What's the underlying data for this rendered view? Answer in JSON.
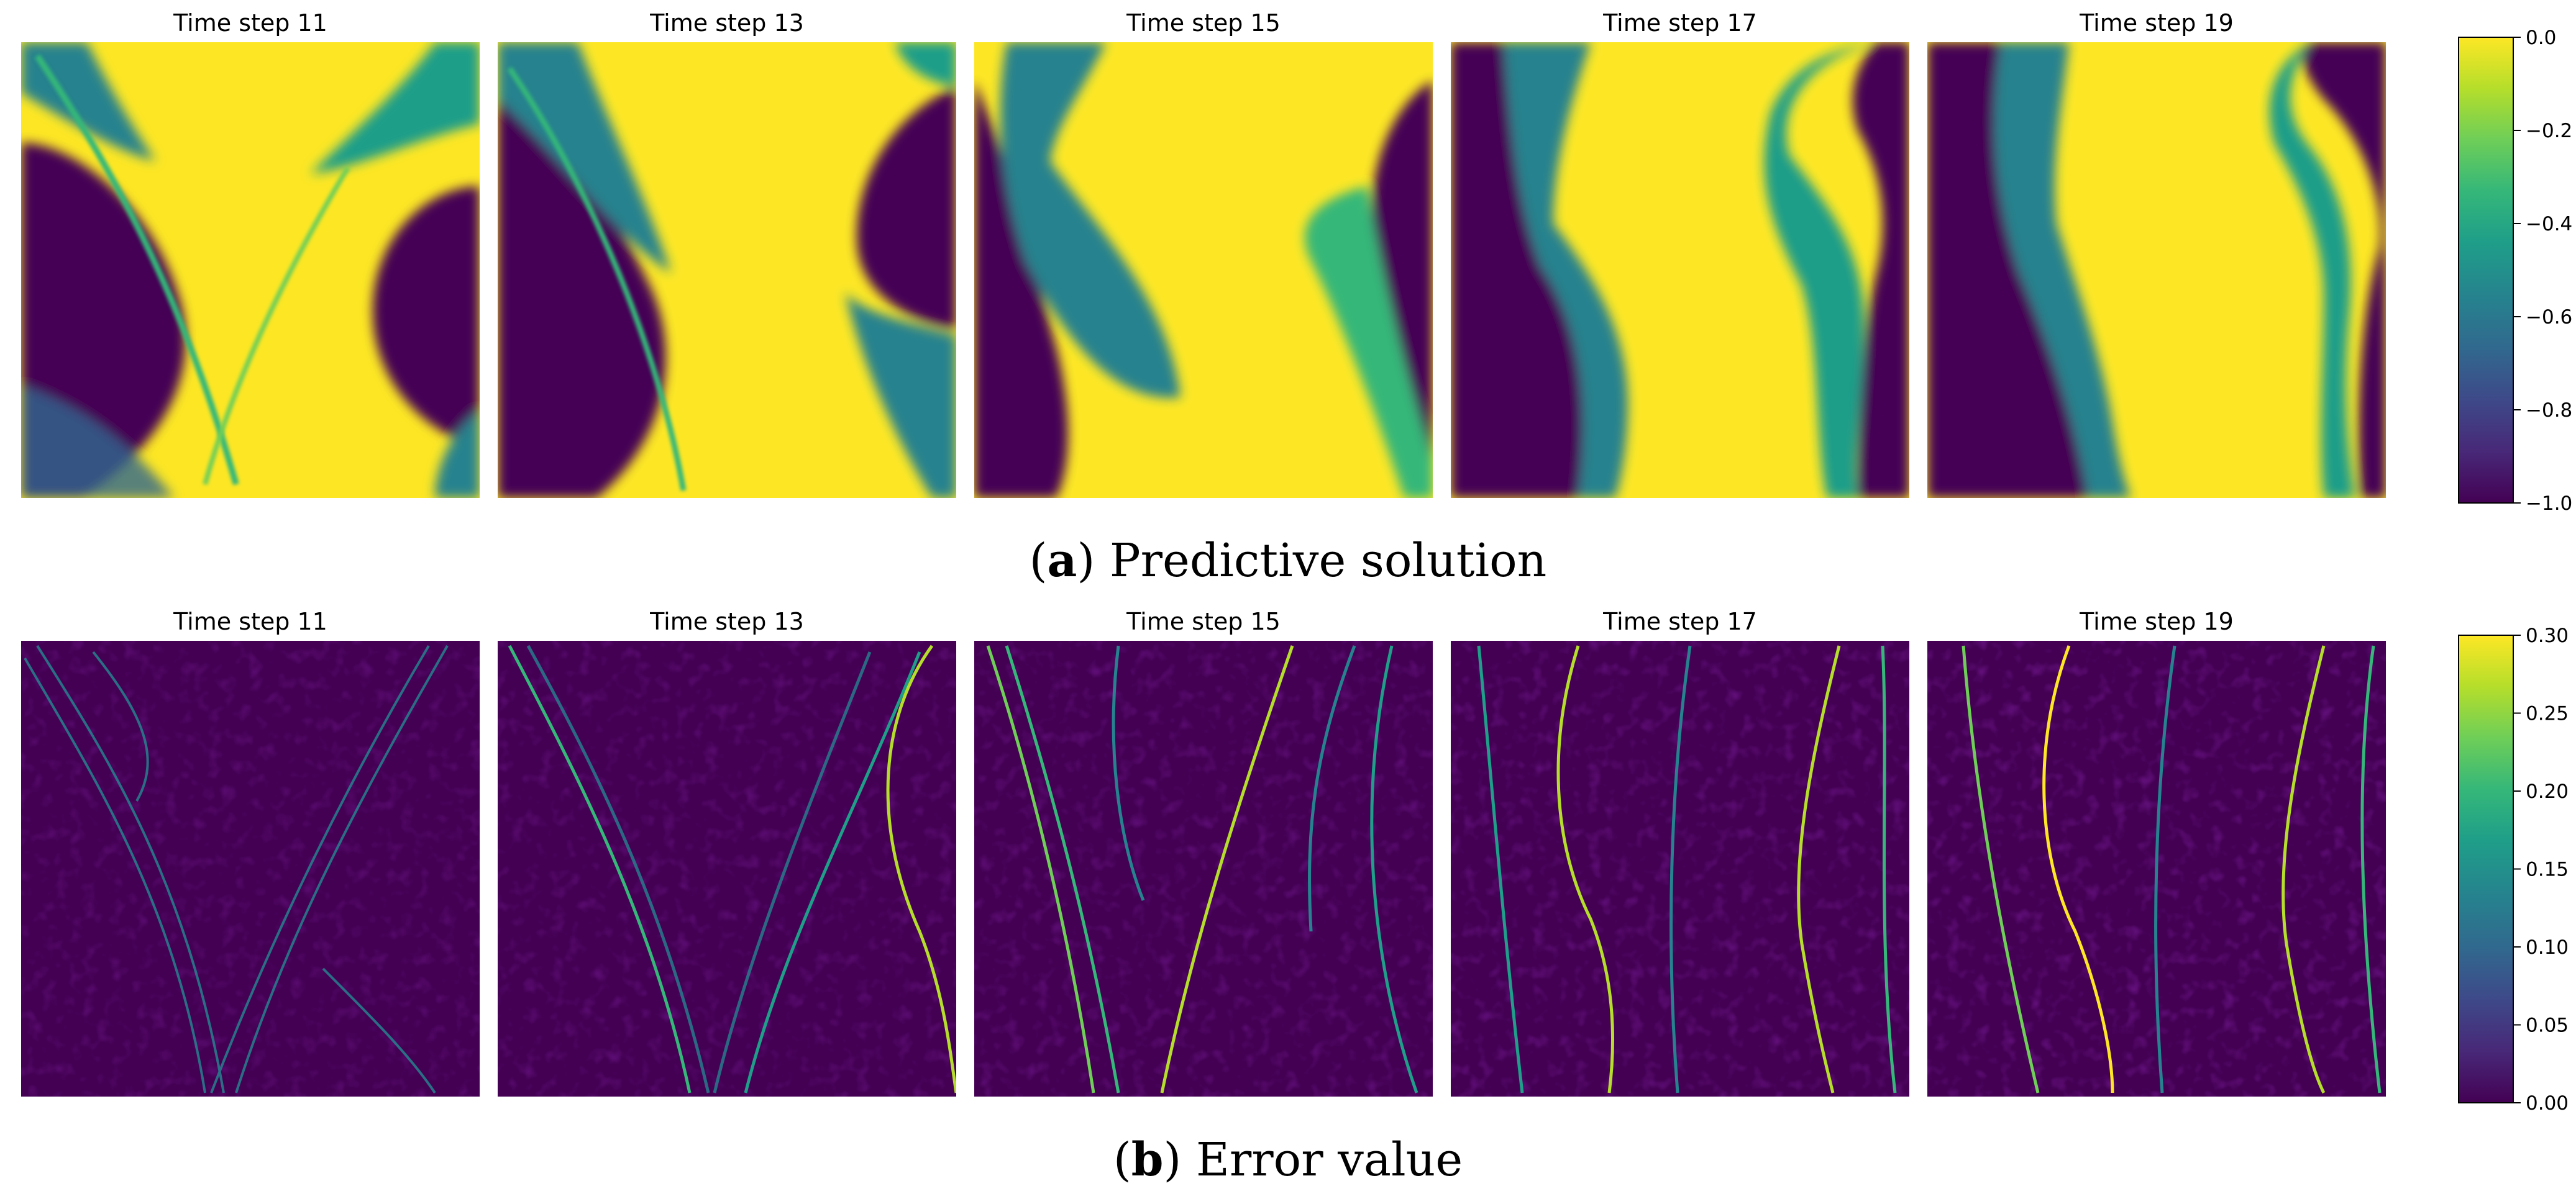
{
  "figure": {
    "captions": [
      {
        "letter": "a",
        "text": "Predictive solution"
      },
      {
        "letter": "b",
        "text": "Error value"
      }
    ]
  },
  "colormap": [
    "#440154",
    "#482878",
    "#3e4989",
    "#31688e",
    "#26828e",
    "#1f9e89",
    "#35b779",
    "#6ece58",
    "#b5de2b",
    "#fde725"
  ],
  "chart_data": [
    {
      "type": "heatmap",
      "title": "",
      "quantity": "Predictive solution",
      "panel_titles": [
        "Time step 11",
        "Time step 13",
        "Time step 15",
        "Time step 17",
        "Time step 19"
      ],
      "time_steps": [
        11,
        13,
        15,
        17,
        19
      ],
      "colorbar": {
        "range": [
          -1.0,
          0.0
        ],
        "ticks": [
          0.0,
          -0.2,
          -0.4,
          -0.6,
          -0.8,
          -1.0
        ],
        "tick_labels": [
          "0.0",
          "−0.2",
          "−0.4",
          "−0.6",
          "−0.8",
          "−1.0"
        ]
      },
      "grid": false,
      "axes_visible": false
    },
    {
      "type": "heatmap",
      "title": "",
      "quantity": "Error value",
      "panel_titles": [
        "Time step 11",
        "Time step 13",
        "Time step 15",
        "Time step 17",
        "Time step 19"
      ],
      "time_steps": [
        11,
        13,
        15,
        17,
        19
      ],
      "colorbar": {
        "range": [
          0.0,
          0.3
        ],
        "ticks": [
          0.3,
          0.25,
          0.2,
          0.15,
          0.1,
          0.05,
          0.0
        ],
        "tick_labels": [
          "0.30",
          "0.25",
          "0.20",
          "0.15",
          "0.10",
          "0.05",
          "0.00"
        ]
      },
      "grid": false,
      "axes_visible": false
    }
  ]
}
